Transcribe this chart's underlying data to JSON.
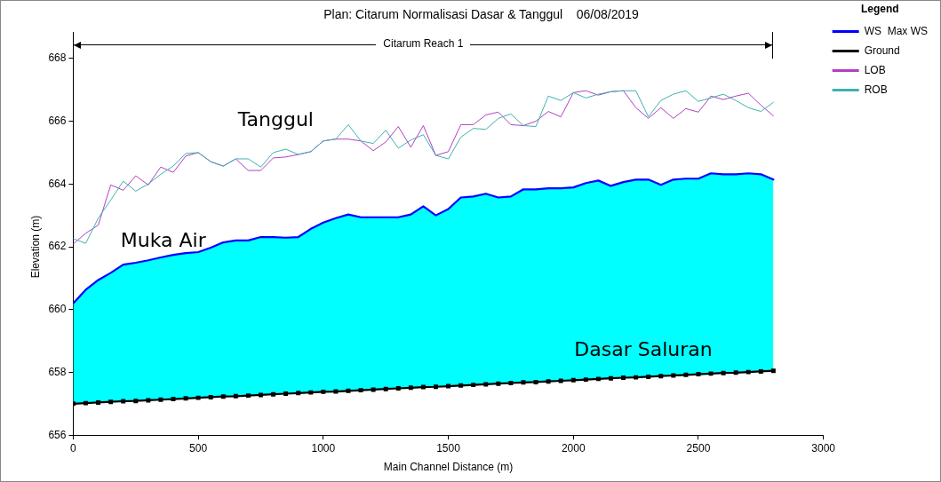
{
  "chart_data": {
    "type": "line",
    "title": "Plan: Citarum Normalisasi Dasar & Tanggul    06/08/2019",
    "xlabel": "Main Channel Distance (m)",
    "ylabel": "Elevation (m)",
    "legend_title": "Legend",
    "legend": "right",
    "grid": false,
    "x": [
      0,
      50,
      100,
      150,
      200,
      250,
      300,
      350,
      400,
      450,
      500,
      550,
      600,
      650,
      700,
      750,
      800,
      850,
      900,
      950,
      1000,
      1050,
      1100,
      1150,
      1200,
      1250,
      1300,
      1350,
      1400,
      1450,
      1500,
      1550,
      1600,
      1650,
      1700,
      1750,
      1800,
      1850,
      1900,
      1950,
      2000,
      2050,
      2100,
      2150,
      2200,
      2250,
      2300,
      2350,
      2400,
      2450,
      2500,
      2550,
      2600,
      2650,
      2700,
      2750,
      2800
    ],
    "xlim": [
      0,
      3000
    ],
    "xticks": [
      0,
      500,
      1000,
      1500,
      2000,
      2500,
      3000
    ],
    "ylim": [
      656,
      668
    ],
    "yticks": [
      656,
      658,
      660,
      662,
      664,
      666,
      668
    ],
    "series": [
      {
        "name": "WS  Max WS",
        "type": "area",
        "color": "#0000ff",
        "marker": "none",
        "values": [
          660.2,
          660.63,
          660.94,
          661.17,
          661.43,
          661.49,
          661.57,
          661.66,
          661.74,
          661.8,
          661.83,
          661.97,
          662.14,
          662.2,
          662.2,
          662.31,
          662.31,
          662.29,
          662.31,
          662.57,
          662.77,
          662.91,
          663.03,
          662.94,
          662.94,
          662.94,
          662.94,
          663.03,
          663.29,
          663.0,
          663.2,
          663.57,
          663.6,
          663.69,
          663.57,
          663.6,
          663.83,
          663.83,
          663.86,
          663.86,
          663.89,
          664.03,
          664.11,
          663.94,
          664.06,
          664.14,
          664.14,
          663.97,
          664.14,
          664.17,
          664.17,
          664.34,
          664.31,
          664.31,
          664.34,
          664.31,
          664.14
        ]
      },
      {
        "name": "Ground",
        "type": "line",
        "color": "#000000",
        "marker": "square",
        "values": [
          657.0,
          657.02,
          657.04,
          657.06,
          657.08,
          657.09,
          657.11,
          657.13,
          657.15,
          657.17,
          657.19,
          657.21,
          657.23,
          657.24,
          657.26,
          657.28,
          657.3,
          657.32,
          657.34,
          657.36,
          657.38,
          657.39,
          657.41,
          657.43,
          657.45,
          657.47,
          657.49,
          657.51,
          657.53,
          657.54,
          657.56,
          657.58,
          657.6,
          657.62,
          657.64,
          657.66,
          657.68,
          657.69,
          657.71,
          657.73,
          657.75,
          657.77,
          657.79,
          657.81,
          657.83,
          657.84,
          657.86,
          657.88,
          657.9,
          657.92,
          657.94,
          657.96,
          657.98,
          657.99,
          658.01,
          658.03,
          658.05
        ]
      },
      {
        "name": "LOB",
        "type": "line",
        "color": "#b040c0",
        "marker": "none",
        "values": [
          662.09,
          662.43,
          662.69,
          663.97,
          663.8,
          664.26,
          663.97,
          664.54,
          664.37,
          664.89,
          665.0,
          664.71,
          664.57,
          664.8,
          664.43,
          664.43,
          664.83,
          664.86,
          664.94,
          665.03,
          665.37,
          665.43,
          665.43,
          665.37,
          665.06,
          665.34,
          665.83,
          665.17,
          665.86,
          664.91,
          665.03,
          665.89,
          665.89,
          666.2,
          666.29,
          665.89,
          665.86,
          666.0,
          666.31,
          666.14,
          666.91,
          666.97,
          666.83,
          666.94,
          666.97,
          666.43,
          666.09,
          666.43,
          666.09,
          666.4,
          666.29,
          666.8,
          666.69,
          666.8,
          666.89,
          666.51,
          666.17
        ]
      },
      {
        "name": "ROB",
        "type": "line",
        "color": "#40b0b0",
        "marker": "none",
        "values": [
          662.26,
          662.11,
          662.91,
          663.49,
          664.09,
          663.77,
          664.0,
          664.31,
          664.57,
          664.97,
          665.0,
          664.71,
          664.57,
          664.8,
          664.8,
          664.54,
          665.0,
          665.11,
          664.94,
          665.03,
          665.37,
          665.43,
          665.89,
          665.37,
          665.29,
          665.71,
          665.14,
          665.4,
          665.57,
          664.91,
          664.8,
          665.49,
          665.77,
          665.74,
          666.09,
          666.23,
          665.86,
          665.83,
          666.8,
          666.66,
          666.91,
          666.74,
          666.86,
          666.94,
          666.97,
          666.97,
          666.14,
          666.66,
          666.86,
          666.97,
          666.63,
          666.74,
          666.86,
          666.66,
          666.43,
          666.31,
          666.6
        ]
      }
    ],
    "annotations": [
      "Citarum Reach 1",
      "Tanggul",
      "Muka Air",
      "Dasar Saluran"
    ]
  }
}
